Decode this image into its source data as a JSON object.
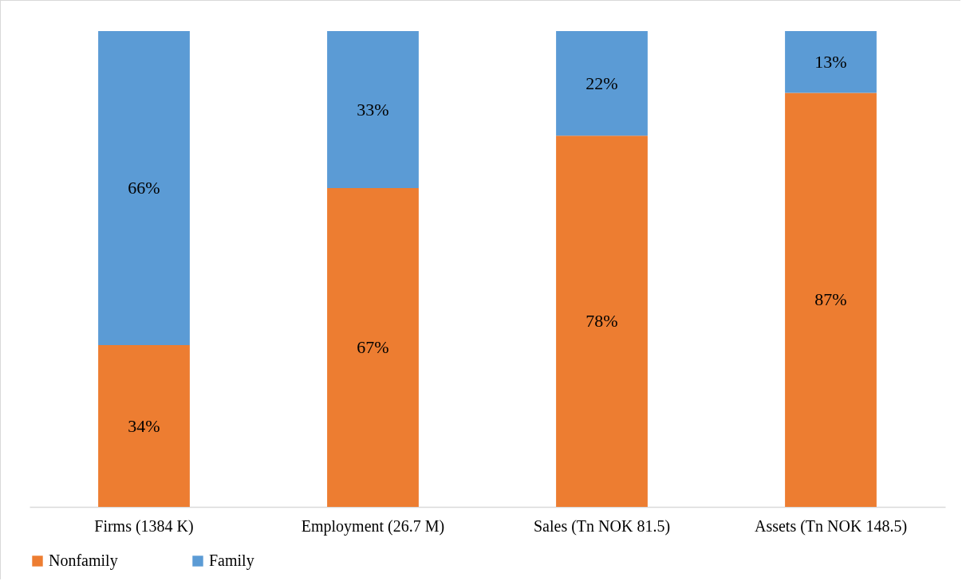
{
  "chart_data": {
    "type": "bar",
    "stacked": true,
    "categories": [
      "Firms (1384 K)",
      "Employment (26.7 M)",
      "Sales (Tn NOK 81.5)",
      "Assets (Tn NOK 148.5)"
    ],
    "series": [
      {
        "name": "Nonfamily",
        "color": "#ed7d31",
        "values": [
          34,
          67,
          78,
          87
        ],
        "value_labels": [
          "34%",
          "67%",
          "78%",
          "87%"
        ]
      },
      {
        "name": "Family",
        "color": "#5b9bd5",
        "values": [
          66,
          33,
          22,
          13
        ],
        "value_labels": [
          "66%",
          "33%",
          "22%",
          "13%"
        ]
      }
    ],
    "ylim": [
      0,
      100
    ],
    "tick_labels": "x",
    "grid": false,
    "legend": "bottom"
  }
}
